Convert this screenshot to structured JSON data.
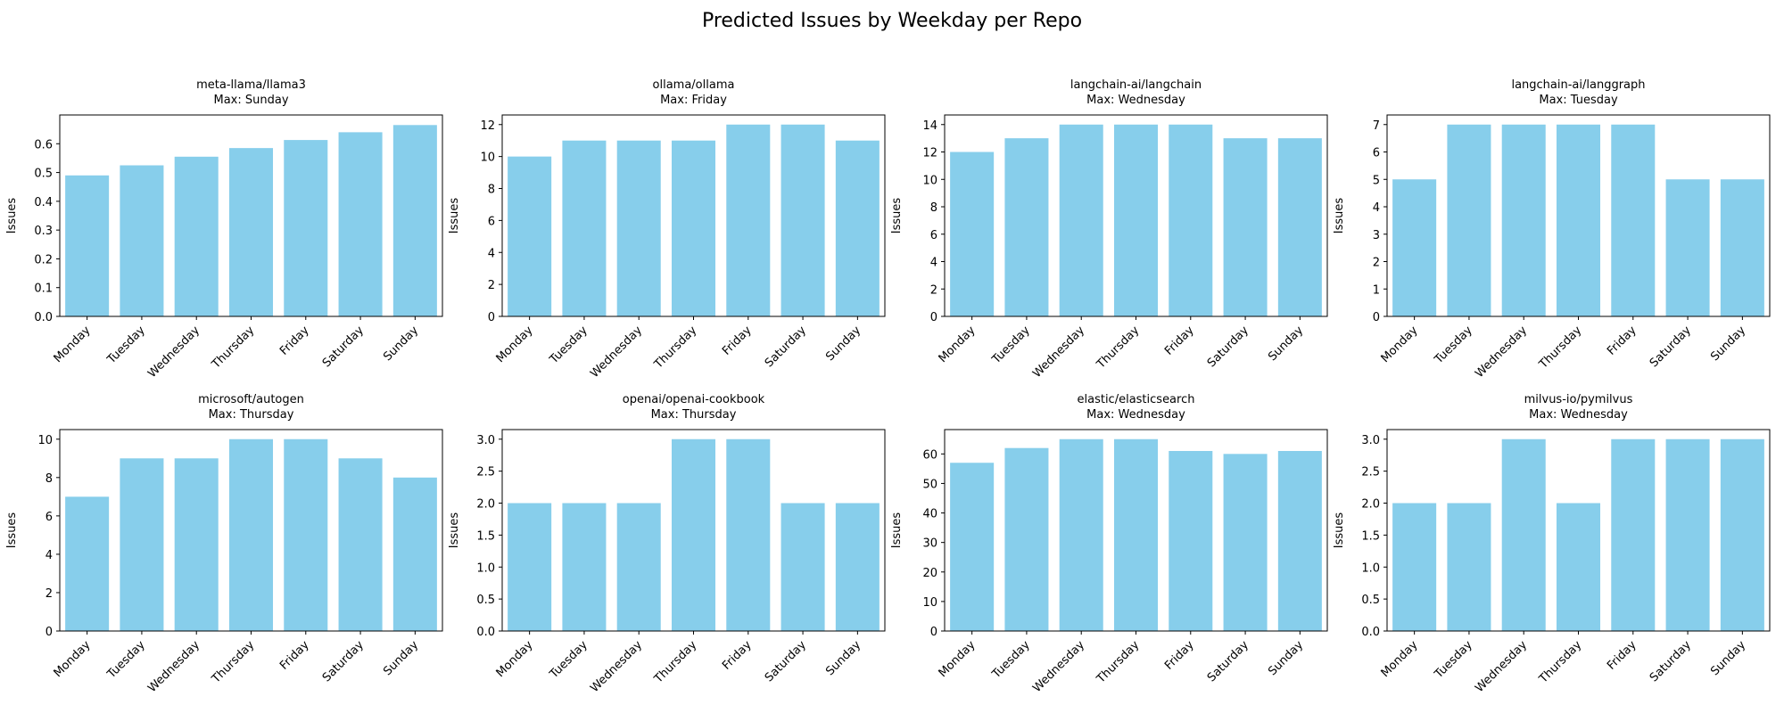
{
  "figure": {
    "title": "Predicted Issues by Weekday per Repo"
  },
  "colors": {
    "bar": "#87CEEB",
    "axis": "#000000",
    "background": "#ffffff"
  },
  "chart_data": [
    {
      "type": "bar",
      "title": "meta-llama/llama3",
      "subtitle": "Max: Sunday",
      "ylabel": "Issues",
      "categories": [
        "Monday",
        "Tuesday",
        "Wednesday",
        "Thursday",
        "Friday",
        "Saturday",
        "Sunday"
      ],
      "values": [
        0.49,
        0.525,
        0.555,
        0.585,
        0.613,
        0.64,
        0.665
      ],
      "ylim": [
        0,
        0.7
      ],
      "yticks": [
        "0.0",
        "0.1",
        "0.2",
        "0.3",
        "0.4",
        "0.5",
        "0.6"
      ],
      "grid": false
    },
    {
      "type": "bar",
      "title": "ollama/ollama",
      "subtitle": "Max: Friday",
      "ylabel": "Issues",
      "categories": [
        "Monday",
        "Tuesday",
        "Wednesday",
        "Thursday",
        "Friday",
        "Saturday",
        "Sunday"
      ],
      "values": [
        10,
        11,
        11,
        11,
        12,
        12,
        11
      ],
      "ylim": [
        0,
        12.6
      ],
      "yticks": [
        "0",
        "2",
        "4",
        "6",
        "8",
        "10",
        "12"
      ],
      "grid": false
    },
    {
      "type": "bar",
      "title": "langchain-ai/langchain",
      "subtitle": "Max: Wednesday",
      "ylabel": "Issues",
      "categories": [
        "Monday",
        "Tuesday",
        "Wednesday",
        "Thursday",
        "Friday",
        "Saturday",
        "Sunday"
      ],
      "values": [
        12,
        13,
        14,
        14,
        14,
        13,
        13
      ],
      "ylim": [
        0,
        14.7
      ],
      "yticks": [
        "0",
        "2",
        "4",
        "6",
        "8",
        "10",
        "12",
        "14"
      ],
      "grid": false
    },
    {
      "type": "bar",
      "title": "langchain-ai/langgraph",
      "subtitle": "Max: Tuesday",
      "ylabel": "Issues",
      "categories": [
        "Monday",
        "Tuesday",
        "Wednesday",
        "Thursday",
        "Friday",
        "Saturday",
        "Sunday"
      ],
      "values": [
        5,
        7,
        7,
        7,
        7,
        5,
        5
      ],
      "ylim": [
        0,
        7.35
      ],
      "yticks": [
        "0",
        "1",
        "2",
        "3",
        "4",
        "5",
        "6",
        "7"
      ],
      "grid": false
    },
    {
      "type": "bar",
      "title": "microsoft/autogen",
      "subtitle": "Max: Thursday",
      "ylabel": "Issues",
      "categories": [
        "Monday",
        "Tuesday",
        "Wednesday",
        "Thursday",
        "Friday",
        "Saturday",
        "Sunday"
      ],
      "values": [
        7,
        9,
        9,
        10,
        10,
        9,
        8
      ],
      "ylim": [
        0,
        10.5
      ],
      "yticks": [
        "0",
        "2",
        "4",
        "6",
        "8",
        "10"
      ],
      "grid": false
    },
    {
      "type": "bar",
      "title": "openai/openai-cookbook",
      "subtitle": "Max: Thursday",
      "ylabel": "Issues",
      "categories": [
        "Monday",
        "Tuesday",
        "Wednesday",
        "Thursday",
        "Friday",
        "Saturday",
        "Sunday"
      ],
      "values": [
        2,
        2,
        2,
        3,
        3,
        2,
        2
      ],
      "ylim": [
        0,
        3.15
      ],
      "yticks": [
        "0.0",
        "0.5",
        "1.0",
        "1.5",
        "2.0",
        "2.5",
        "3.0"
      ],
      "grid": false
    },
    {
      "type": "bar",
      "title": "elastic/elasticsearch",
      "subtitle": "Max: Wednesday",
      "ylabel": "Issues",
      "categories": [
        "Monday",
        "Tuesday",
        "Wednesday",
        "Thursday",
        "Friday",
        "Saturday",
        "Sunday"
      ],
      "values": [
        57,
        62,
        65,
        65,
        61,
        60,
        61
      ],
      "ylim": [
        0,
        68.25
      ],
      "yticks": [
        "0",
        "10",
        "20",
        "30",
        "40",
        "50",
        "60"
      ],
      "grid": false
    },
    {
      "type": "bar",
      "title": "milvus-io/pymilvus",
      "subtitle": "Max: Wednesday",
      "ylabel": "Issues",
      "categories": [
        "Monday",
        "Tuesday",
        "Wednesday",
        "Thursday",
        "Friday",
        "Saturday",
        "Sunday"
      ],
      "values": [
        2,
        2,
        3,
        2,
        3,
        3,
        3
      ],
      "ylim": [
        0,
        3.15
      ],
      "yticks": [
        "0.0",
        "0.5",
        "1.0",
        "1.5",
        "2.0",
        "2.5",
        "3.0"
      ],
      "grid": false
    }
  ]
}
